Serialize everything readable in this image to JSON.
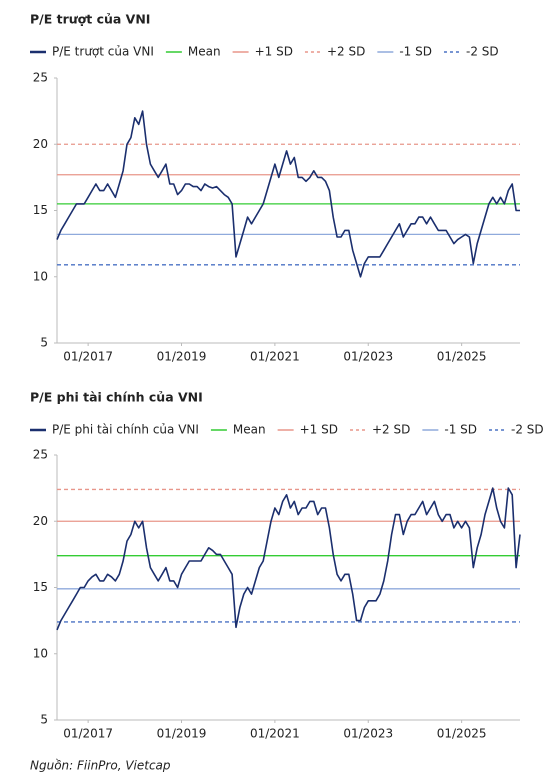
{
  "chart_data": [
    {
      "type": "line",
      "title": "P/E trượt của VNI",
      "x": [
        "05/2016",
        "06/2016",
        "07/2016",
        "08/2016",
        "09/2016",
        "10/2016",
        "11/2016",
        "12/2016",
        "01/2017",
        "02/2017",
        "03/2017",
        "04/2017",
        "05/2017",
        "06/2017",
        "07/2017",
        "08/2017",
        "09/2017",
        "10/2017",
        "11/2017",
        "12/2017",
        "01/2018",
        "02/2018",
        "03/2018",
        "04/2018",
        "05/2018",
        "06/2018",
        "07/2018",
        "08/2018",
        "09/2018",
        "10/2018",
        "11/2018",
        "12/2018",
        "01/2019",
        "02/2019",
        "03/2019",
        "04/2019",
        "05/2019",
        "06/2019",
        "07/2019",
        "08/2019",
        "09/2019",
        "10/2019",
        "11/2019",
        "12/2019",
        "01/2020",
        "02/2020",
        "03/2020",
        "04/2020",
        "05/2020",
        "06/2020",
        "07/2020",
        "08/2020",
        "09/2020",
        "10/2020",
        "11/2020",
        "12/2020",
        "01/2021",
        "02/2021",
        "03/2021",
        "04/2021",
        "05/2021",
        "06/2021",
        "07/2021",
        "08/2021",
        "09/2021",
        "10/2021",
        "11/2021",
        "12/2021",
        "01/2022",
        "02/2022",
        "03/2022",
        "04/2022",
        "05/2022",
        "06/2022",
        "07/2022",
        "08/2022",
        "09/2022",
        "10/2022",
        "11/2022",
        "12/2022",
        "01/2023",
        "02/2023",
        "03/2023",
        "04/2023",
        "05/2023",
        "06/2023",
        "07/2023",
        "08/2023",
        "09/2023",
        "10/2023",
        "11/2023",
        "12/2023",
        "01/2024",
        "02/2024",
        "03/2024",
        "04/2024",
        "05/2024",
        "06/2024",
        "07/2024",
        "08/2024",
        "09/2024",
        "10/2024",
        "11/2024",
        "12/2024",
        "01/2025",
        "02/2025",
        "03/2025",
        "04/2025",
        "05/2025",
        "06/2025",
        "07/2025",
        "08/2025",
        "09/2025",
        "10/2025",
        "11/2025",
        "12/2025",
        "01/2026",
        "02/2026",
        "03/2026",
        "04/2026"
      ],
      "series": [
        {
          "name": "P/E trượt của VNI",
          "color": "#1b2f6e",
          "values": [
            12.8,
            13.5,
            14,
            14.5,
            15,
            15.5,
            15.5,
            15.5,
            16,
            16.5,
            17,
            16.5,
            16.5,
            17,
            16.5,
            16,
            17,
            18,
            20,
            20.5,
            22,
            21.5,
            22.5,
            20,
            18.5,
            18,
            17.5,
            18,
            18.5,
            17,
            17,
            16.2,
            16.5,
            17,
            17,
            16.8,
            16.8,
            16.5,
            17,
            16.8,
            16.7,
            16.8,
            16.5,
            16.2,
            16,
            15.5,
            11.5,
            12.5,
            13.5,
            14.5,
            14,
            14.5,
            15,
            15.5,
            16.5,
            17.5,
            18.5,
            17.5,
            18.5,
            19.5,
            18.5,
            19,
            17.5,
            17.5,
            17.2,
            17.5,
            18,
            17.5,
            17.5,
            17.2,
            16.5,
            14.5,
            13,
            13,
            13.5,
            13.5,
            12,
            11,
            10,
            11,
            11.5,
            11.5,
            11.5,
            11.5,
            12,
            12.5,
            13,
            13.5,
            14,
            13,
            13.5,
            14,
            14,
            14.5,
            14.5,
            14,
            14.5,
            14,
            13.5,
            13.5,
            13.5,
            13,
            12.5,
            12.8,
            13,
            13.2,
            13,
            11,
            12.5,
            13.5,
            14.5,
            15.5,
            16,
            15.5,
            16,
            15.5,
            16.5,
            17,
            15,
            15
          ]
        }
      ],
      "ref_lines": [
        {
          "name": "Mean",
          "value": 15.5,
          "color": "#33cc33",
          "dashed": false
        },
        {
          "name": "+1 SD",
          "value": 17.7,
          "color": "#e8968a",
          "dashed": false
        },
        {
          "name": "+2 SD",
          "value": 20,
          "color": "#e8968a",
          "dashed": true
        },
        {
          "name": "-1 SD",
          "value": 13.2,
          "color": "#8faadc",
          "dashed": false
        },
        {
          "name": "-2 SD",
          "value": 10.9,
          "color": "#4a72c4",
          "dashed": true
        }
      ],
      "xlim": [
        "05/2016",
        "04/2026"
      ],
      "xticks": [
        "01/2017",
        "01/2019",
        "01/2021",
        "01/2023",
        "01/2025"
      ],
      "ylim": [
        5,
        25
      ],
      "yticks": [
        5,
        10,
        15,
        20,
        25
      ]
    },
    {
      "type": "line",
      "title": "P/E phi tài chính của VNI",
      "x": [
        "05/2016",
        "06/2016",
        "07/2016",
        "08/2016",
        "09/2016",
        "10/2016",
        "11/2016",
        "12/2016",
        "01/2017",
        "02/2017",
        "03/2017",
        "04/2017",
        "05/2017",
        "06/2017",
        "07/2017",
        "08/2017",
        "09/2017",
        "10/2017",
        "11/2017",
        "12/2017",
        "01/2018",
        "02/2018",
        "03/2018",
        "04/2018",
        "05/2018",
        "06/2018",
        "07/2018",
        "08/2018",
        "09/2018",
        "10/2018",
        "11/2018",
        "12/2018",
        "01/2019",
        "02/2019",
        "03/2019",
        "04/2019",
        "05/2019",
        "06/2019",
        "07/2019",
        "08/2019",
        "09/2019",
        "10/2019",
        "11/2019",
        "12/2019",
        "01/2020",
        "02/2020",
        "03/2020",
        "04/2020",
        "05/2020",
        "06/2020",
        "07/2020",
        "08/2020",
        "09/2020",
        "10/2020",
        "11/2020",
        "12/2020",
        "01/2021",
        "02/2021",
        "03/2021",
        "04/2021",
        "05/2021",
        "06/2021",
        "07/2021",
        "08/2021",
        "09/2021",
        "10/2021",
        "11/2021",
        "12/2021",
        "01/2022",
        "02/2022",
        "03/2022",
        "04/2022",
        "05/2022",
        "06/2022",
        "07/2022",
        "08/2022",
        "09/2022",
        "10/2022",
        "11/2022",
        "12/2022",
        "01/2023",
        "02/2023",
        "03/2023",
        "04/2023",
        "05/2023",
        "06/2023",
        "07/2023",
        "08/2023",
        "09/2023",
        "10/2023",
        "11/2023",
        "12/2023",
        "01/2024",
        "02/2024",
        "03/2024",
        "04/2024",
        "05/2024",
        "06/2024",
        "07/2024",
        "08/2024",
        "09/2024",
        "10/2024",
        "11/2024",
        "12/2024",
        "01/2025",
        "02/2025",
        "03/2025",
        "04/2025",
        "05/2025",
        "06/2025",
        "07/2025",
        "08/2025",
        "09/2025",
        "10/2025",
        "11/2025",
        "12/2025",
        "01/2026",
        "02/2026",
        "03/2026",
        "04/2026"
      ],
      "series": [
        {
          "name": "P/E phi tài chính của VNI",
          "color": "#1b2f6e",
          "values": [
            11.8,
            12.5,
            13,
            13.5,
            14,
            14.5,
            15,
            15,
            15.5,
            15.8,
            16,
            15.5,
            15.5,
            16,
            15.8,
            15.5,
            16,
            17,
            18.5,
            19,
            20,
            19.5,
            20,
            18,
            16.5,
            16,
            15.5,
            16,
            16.5,
            15.5,
            15.5,
            15,
            16,
            16.5,
            17,
            17,
            17,
            17,
            17.5,
            18,
            17.8,
            17.5,
            17.5,
            17,
            16.5,
            16,
            12,
            13.5,
            14.5,
            15,
            14.5,
            15.5,
            16.5,
            17,
            18.5,
            20,
            21,
            20.5,
            21.5,
            22,
            21,
            21.5,
            20.5,
            21,
            21,
            21.5,
            21.5,
            20.5,
            21,
            21,
            19.5,
            17.5,
            16,
            15.5,
            16,
            16,
            14.5,
            12.5,
            12.5,
            13.5,
            14,
            14,
            14,
            14.5,
            15.5,
            17,
            19,
            20.5,
            20.5,
            19,
            20,
            20.5,
            20.5,
            21,
            21.5,
            20.5,
            21,
            21.5,
            20.5,
            20,
            20.5,
            20.5,
            19.5,
            20,
            19.5,
            20,
            19.5,
            16.5,
            18,
            19,
            20.5,
            21.5,
            22.5,
            21,
            20,
            19.5,
            22.5,
            22,
            16.5,
            19
          ]
        }
      ],
      "ref_lines": [
        {
          "name": "Mean",
          "value": 17.4,
          "color": "#33cc33",
          "dashed": false
        },
        {
          "name": "+1 SD",
          "value": 20,
          "color": "#e8968a",
          "dashed": false
        },
        {
          "name": "+2 SD",
          "value": 22.4,
          "color": "#e8968a",
          "dashed": true
        },
        {
          "name": "-1 SD",
          "value": 14.9,
          "color": "#8faadc",
          "dashed": false
        },
        {
          "name": "-2 SD",
          "value": 12.4,
          "color": "#4a72c4",
          "dashed": true
        }
      ],
      "xlim": [
        "05/2016",
        "04/2026"
      ],
      "xticks": [
        "01/2017",
        "01/2019",
        "01/2021",
        "01/2023",
        "01/2025"
      ],
      "ylim": [
        5,
        25
      ],
      "yticks": [
        5,
        10,
        15,
        20,
        25
      ]
    }
  ],
  "source": "Nguồn: FiinPro, Vietcap"
}
